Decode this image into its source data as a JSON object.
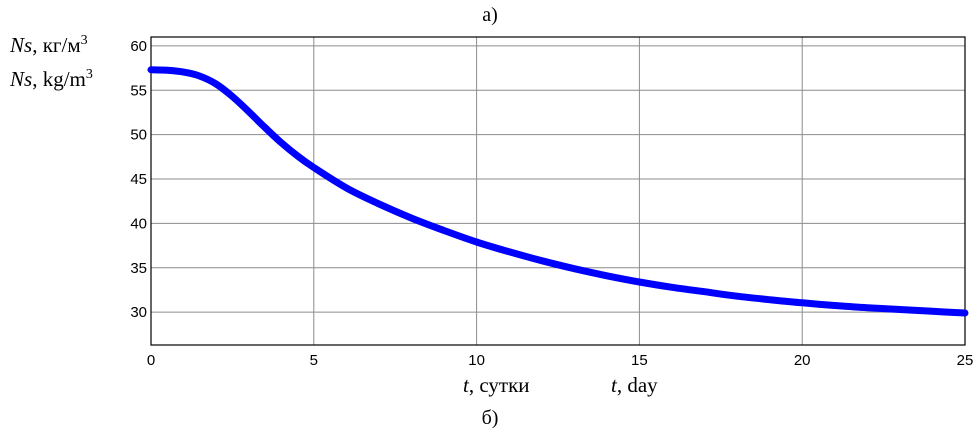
{
  "header": {
    "panel_label_top": "а)"
  },
  "footer": {
    "panel_label_bottom": "б)"
  },
  "chart_data": {
    "type": "line",
    "ylabel_ru": {
      "var": "Ns",
      "unit": ", кг/м",
      "exp": "3"
    },
    "ylabel_en": {
      "var": "Ns",
      "unit": ", kg/m",
      "exp": "3"
    },
    "xlabel_ru": {
      "var": "t",
      "unit": ", сутки"
    },
    "xlabel_en": {
      "var": "t",
      "unit": ", day"
    },
    "xlim": [
      0,
      25
    ],
    "ylim": [
      26.3,
      61
    ],
    "xticks": [
      0,
      5,
      10,
      15,
      20,
      25
    ],
    "yticks": [
      30,
      35,
      40,
      45,
      50,
      55,
      60
    ],
    "grid": true,
    "line_color": "#0000ff",
    "series": [
      {
        "x": [
          0,
          0.5,
          1,
          1.5,
          2,
          2.5,
          3,
          3.5,
          4,
          4.5,
          5,
          6,
          7,
          8,
          9,
          10,
          11,
          12,
          13,
          14,
          15,
          16,
          17,
          18,
          19,
          20,
          21,
          22,
          23,
          24,
          25
        ],
        "y": [
          57.3,
          57.25,
          57.05,
          56.6,
          55.7,
          54.3,
          52.6,
          50.8,
          49.1,
          47.6,
          46.3,
          44.0,
          42.2,
          40.6,
          39.2,
          37.9,
          36.8,
          35.8,
          34.9,
          34.1,
          33.4,
          32.8,
          32.3,
          31.8,
          31.4,
          31.05,
          30.75,
          30.5,
          30.3,
          30.1,
          29.9
        ]
      }
    ]
  }
}
